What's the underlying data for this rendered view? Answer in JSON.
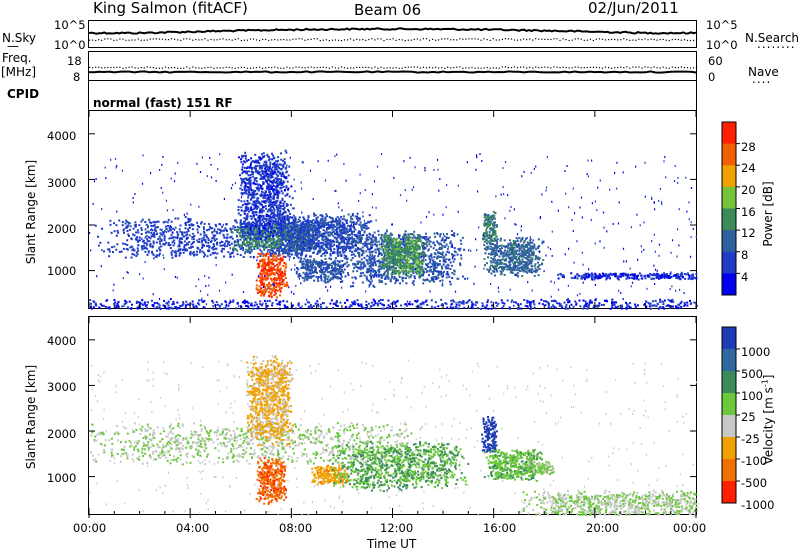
{
  "header": {
    "site": "King Salmon (fitACF)",
    "beam": "Beam 06",
    "date": "02/Jun/2011"
  },
  "panels": {
    "nsky_label": "N.Sky",
    "nsearch_label": "N.Search",
    "nsky_ticks": [
      "10^5",
      "10^0"
    ],
    "nsearch_ticks": [
      "10^5",
      "10^0"
    ],
    "freq_label": "Freq.",
    "freq_unit": "[MHz]",
    "freq_ticks": [
      "18",
      "8"
    ],
    "nave_label": "Nave",
    "nave_ticks": [
      "60",
      "0"
    ],
    "cpid_label": "CPID",
    "cpid_value": "normal (fast) 151 RF"
  },
  "axes": {
    "xlabel": "Time UT",
    "ylabel": "Slant Range [km]",
    "x_ticks": [
      "00:00",
      "04:00",
      "08:00",
      "12:00",
      "16:00",
      "20:00",
      "00:00"
    ],
    "y_ticks": [
      "4000",
      "3000",
      "2000",
      "1000"
    ]
  },
  "colorbars": {
    "power": {
      "label": "Power [dB]",
      "ticks": [
        "28",
        "24",
        "20",
        "16",
        "12",
        "8",
        "4"
      ],
      "colors": [
        "#0000ee",
        "#1e3cc8",
        "#2e5f9e",
        "#3a8a5a",
        "#74c43a",
        "#f0a000",
        "#f06000",
        "#ff2000"
      ]
    },
    "velocity": {
      "label": "Velocity [m s",
      "label_sup": "-1",
      "label_end": "]",
      "ticks": [
        "1000",
        "500",
        "100",
        "25",
        "-25",
        "-100",
        "-500",
        "-1000"
      ],
      "colors": [
        "#1e3cb4",
        "#2e6aa0",
        "#3a8a5a",
        "#6ac83a",
        "#c8c8c8",
        "#f0a000",
        "#f07000",
        "#ff2000"
      ]
    }
  },
  "chart_data": [
    {
      "type": "heatmap",
      "title": "Power",
      "xlabel": "Time UT",
      "ylabel": "Slant Range [km]",
      "xlim": [
        0,
        24
      ],
      "ylim": [
        180,
        4500
      ],
      "colorbar": {
        "label": "Power [dB]",
        "range": [
          0,
          30
        ]
      },
      "regions": [
        {
          "t": [
            2.0,
            8.5
          ],
          "r": [
            1450,
            2050
          ],
          "value": 6
        },
        {
          "t": [
            6.2,
            8.4
          ],
          "r": [
            1550,
            1950
          ],
          "value": 12
        },
        {
          "t": [
            6.8,
            7.6
          ],
          "r": [
            600,
            1250
          ],
          "value": 26
        },
        {
          "t": [
            6.2,
            7.6
          ],
          "r": [
            2000,
            3300
          ],
          "value": 5
        },
        {
          "t": [
            8.0,
            10.5
          ],
          "r": [
            1450,
            2100
          ],
          "value": 7
        },
        {
          "t": [
            8.5,
            9.8
          ],
          "r": [
            850,
            1200
          ],
          "value": 8
        },
        {
          "t": [
            11.0,
            14.0
          ],
          "r": [
            900,
            1700
          ],
          "value": 8
        },
        {
          "t": [
            11.8,
            13.0
          ],
          "r": [
            1050,
            1650
          ],
          "value": 14
        },
        {
          "t": [
            15.6,
            16.0
          ],
          "r": [
            1650,
            2200
          ],
          "value": 12
        },
        {
          "t": [
            16.0,
            17.5
          ],
          "r": [
            1050,
            1600
          ],
          "value": 10
        },
        {
          "t": [
            19.5,
            24.0
          ],
          "r": [
            850,
            950
          ],
          "value": 4
        },
        {
          "t": [
            0.0,
            24.0
          ],
          "r": [
            180,
            350
          ],
          "value": 4
        }
      ]
    },
    {
      "type": "heatmap",
      "title": "Velocity",
      "xlabel": "Time UT",
      "ylabel": "Slant Range [km]",
      "xlim": [
        0,
        24
      ],
      "ylim": [
        180,
        4500
      ],
      "colorbar": {
        "label": "Velocity [m s^-1]",
        "range": [
          -1000,
          1000
        ]
      },
      "regions": [
        {
          "t": [
            2.0,
            11.0
          ],
          "r": [
            1450,
            2050
          ],
          "value": 0
        },
        {
          "t": [
            6.8,
            7.6
          ],
          "r": [
            600,
            1250
          ],
          "value": -700
        },
        {
          "t": [
            6.5,
            7.7
          ],
          "r": [
            2000,
            3300
          ],
          "value": -300
        },
        {
          "t": [
            9.0,
            10.0
          ],
          "r": [
            900,
            1200
          ],
          "value": -400
        },
        {
          "t": [
            10.5,
            14.0
          ],
          "r": [
            900,
            1600
          ],
          "value": 250
        },
        {
          "t": [
            15.6,
            16.0
          ],
          "r": [
            1650,
            2200
          ],
          "value": 900
        },
        {
          "t": [
            16.0,
            17.5
          ],
          "r": [
            1050,
            1500
          ],
          "value": 200
        },
        {
          "t": [
            17.5,
            18.2
          ],
          "r": [
            1100,
            1300
          ],
          "value": 60
        },
        {
          "t": [
            18.5,
            24.0
          ],
          "r": [
            180,
            600
          ],
          "value": 0
        }
      ]
    }
  ]
}
